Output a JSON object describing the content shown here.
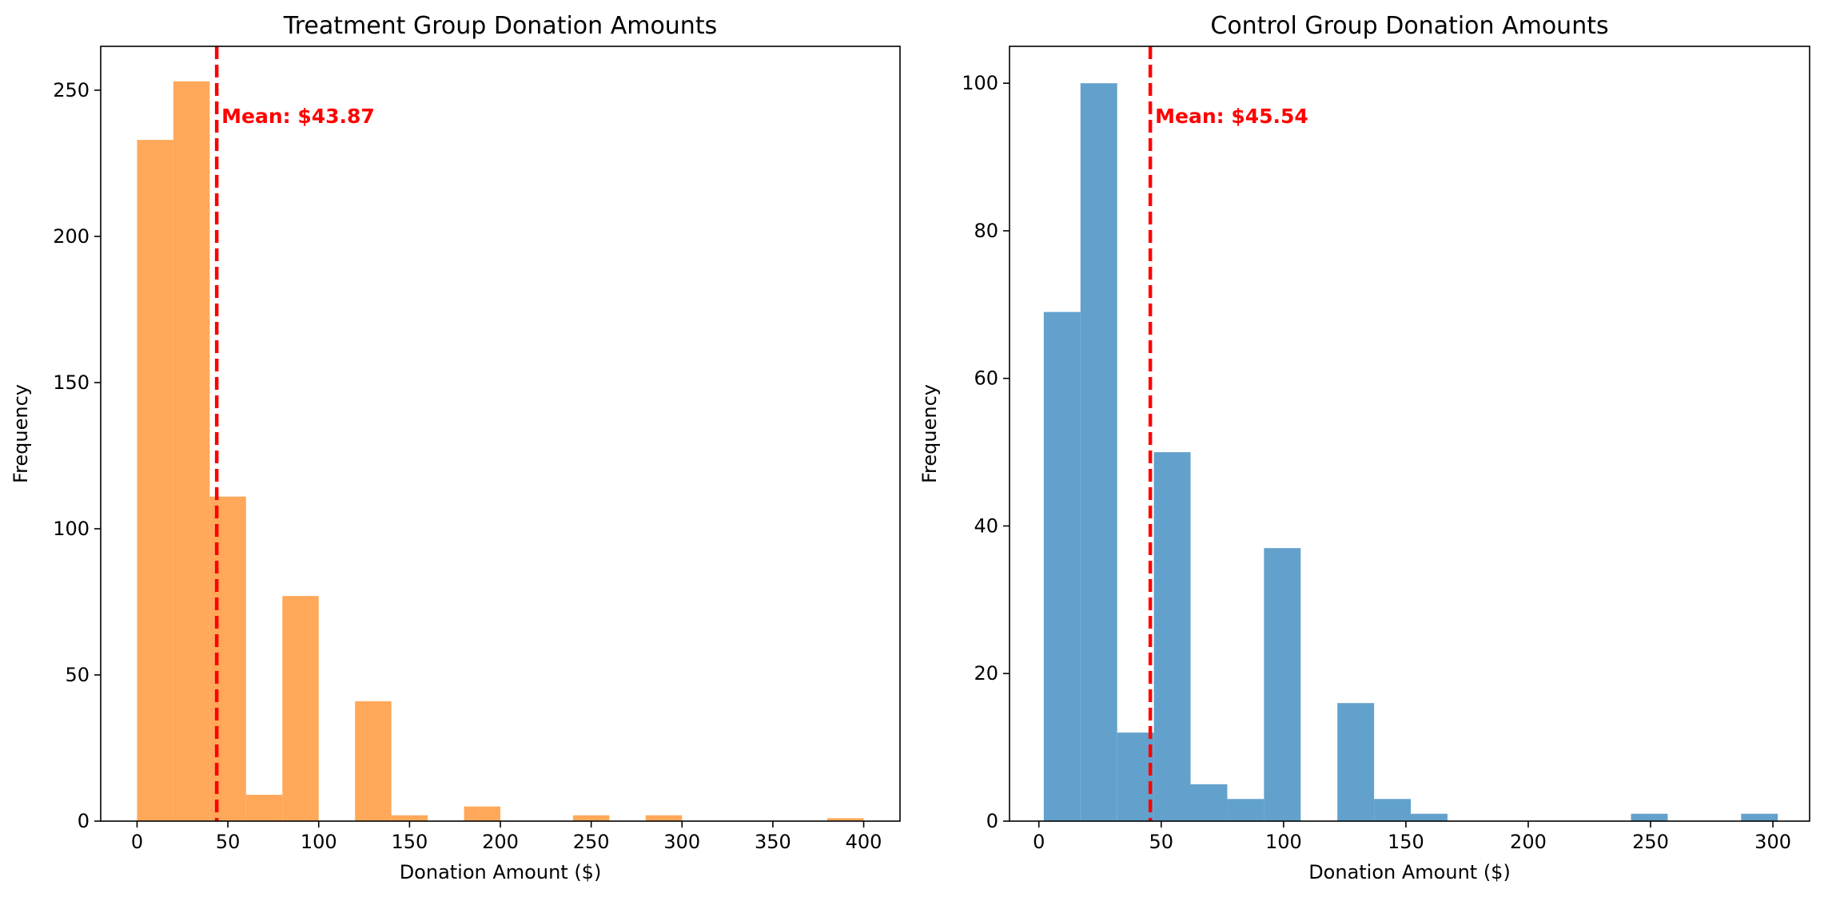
{
  "chart_data": [
    {
      "type": "bar",
      "subtype": "histogram",
      "title": "Treatment Group Donation Amounts",
      "xlabel": "Donation Amount ($)",
      "ylabel": "Frequency",
      "xlim": [
        -20,
        420
      ],
      "ylim": [
        0,
        265
      ],
      "xticks": [
        0,
        50,
        100,
        150,
        200,
        250,
        300,
        350,
        400
      ],
      "yticks": [
        0,
        50,
        100,
        150,
        200,
        250
      ],
      "bin_edges": [
        0,
        20,
        40,
        60,
        80,
        100,
        120,
        140,
        160,
        180,
        200,
        220,
        240,
        260,
        280,
        300,
        320,
        340,
        360,
        380,
        400
      ],
      "counts": [
        233,
        253,
        111,
        9,
        77,
        0,
        41,
        2,
        0,
        5,
        0,
        0,
        2,
        0,
        2,
        0,
        0,
        0,
        0,
        1
      ],
      "color": "#ffa85a",
      "mean": 43.87,
      "mean_label": "Mean: $43.87",
      "mean_color": "#ff0000",
      "grid": false
    },
    {
      "type": "bar",
      "subtype": "histogram",
      "title": "Control Group Donation Amounts",
      "xlabel": "Donation Amount ($)",
      "ylabel": "Frequency",
      "xlim": [
        -12,
        315
      ],
      "ylim": [
        0,
        105
      ],
      "xticks": [
        0,
        50,
        100,
        150,
        200,
        250,
        300
      ],
      "yticks": [
        0,
        20,
        40,
        60,
        80,
        100
      ],
      "bin_edges": [
        2,
        17,
        32,
        47,
        62,
        77,
        92,
        107,
        122,
        137,
        152,
        167,
        182,
        197,
        212,
        227,
        242,
        257,
        272,
        287,
        302
      ],
      "counts": [
        69,
        100,
        12,
        50,
        5,
        3,
        37,
        0,
        16,
        3,
        1,
        0,
        0,
        0,
        0,
        0,
        1,
        0,
        0,
        1
      ],
      "color": "#62a1cc",
      "mean": 45.54,
      "mean_label": "Mean: $45.54",
      "mean_color": "#ff0000",
      "grid": false
    }
  ]
}
